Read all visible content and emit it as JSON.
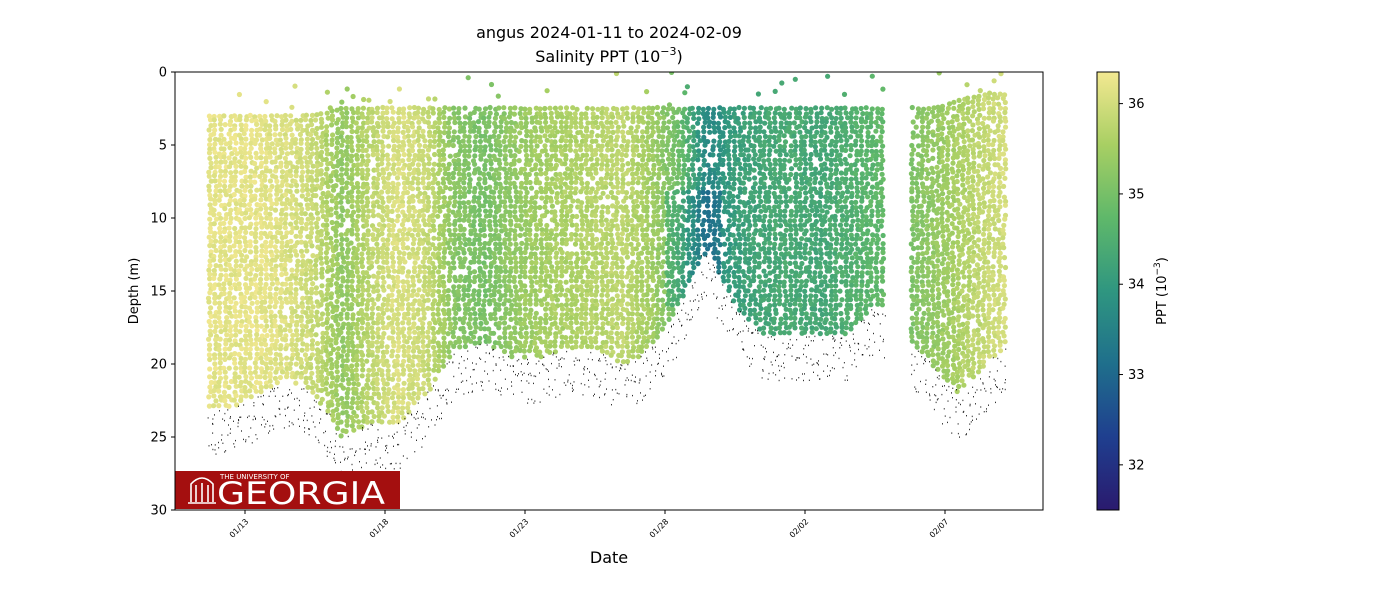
{
  "chart_data": {
    "type": "scatter",
    "title": "angus 2024-01-11 to 2024-02-09",
    "subtitle_prefix": "Salinity PPT (10",
    "subtitle_exp": "−3",
    "subtitle_suffix": ")",
    "xlabel": "Date",
    "ylabel": "Depth (m)",
    "y_inverted": true,
    "ylim": [
      0,
      30
    ],
    "yticks": [
      "0",
      "5",
      "10",
      "15",
      "20",
      "25",
      "30"
    ],
    "yticks_values": [
      0,
      5,
      10,
      15,
      20,
      25,
      30
    ],
    "xlim": [
      "2024-01-10T12:00",
      "2024-02-10T12:00"
    ],
    "xticks": [
      "01/13",
      "01/18",
      "01/23",
      "01/28",
      "02/02",
      "02/07"
    ],
    "xticks_dates": [
      "2024-01-13",
      "2024-01-18",
      "2024-01-23",
      "2024-01-28",
      "2024-02-02",
      "2024-02-07"
    ],
    "grid": false,
    "colorbar": {
      "label_prefix": "PPT (10",
      "label_exp": "−3",
      "label_suffix": ")",
      "range": [
        31.5,
        36.35
      ],
      "ticks": [
        "32",
        "33",
        "34",
        "35",
        "36"
      ],
      "tick_values": [
        32,
        33,
        34,
        35,
        36
      ],
      "colormap": "haline",
      "colors": [
        "#2a1a6e",
        "#1f3f8f",
        "#1f6f8c",
        "#2f9680",
        "#5fb86a",
        "#a8cf63",
        "#f3e891"
      ]
    },
    "series": [
      {
        "x": [
          "2024-01-12",
          "2024-01-13",
          "2024-01-14",
          "2024-01-15",
          "2024-01-16",
          "2024-01-17",
          "2024-01-18",
          "2024-01-19",
          "2024-01-20",
          "2024-01-21",
          "2024-01-22",
          "2024-01-23",
          "2024-01-24",
          "2024-01-25",
          "2024-01-26",
          "2024-01-27",
          "2024-01-28",
          "2024-01-29",
          "2024-01-30",
          "2024-01-31",
          "2024-02-01",
          "2024-02-02",
          "2024-02-03",
          "2024-02-04",
          "2024-02-05",
          "2024-02-06",
          "2024-02-07",
          "2024-02-08",
          "2024-02-09"
        ],
        "salinity_ppt": [
          36.2,
          36.2,
          36.1,
          35.9,
          35.3,
          35.8,
          36.1,
          35.9,
          35.2,
          35.0,
          35.3,
          35.5,
          35.6,
          35.7,
          35.8,
          35.5,
          34.9,
          33.6,
          34.1,
          34.3,
          34.4,
          34.3,
          34.5,
          34.7,
          null,
          35.3,
          35.6,
          35.9,
          36.1
        ],
        "surface_depth_m": [
          3.0,
          3.0,
          3.0,
          3.0,
          2.5,
          2.5,
          2.5,
          2.5,
          2.5,
          2.5,
          2.5,
          2.5,
          2.5,
          2.5,
          2.5,
          2.5,
          2.5,
          2.5,
          2.5,
          2.5,
          2.5,
          2.5,
          2.5,
          2.5,
          null,
          2.5,
          2.0,
          1.5,
          1.5
        ],
        "bottom_depth_m": [
          23.0,
          22.0,
          21.0,
          22.0,
          25.0,
          24.0,
          24.0,
          22.0,
          19.0,
          18.5,
          19.5,
          19.5,
          19.0,
          19.0,
          20.0,
          19.0,
          16.0,
          12.0,
          16.0,
          18.0,
          18.0,
          18.0,
          18.0,
          16.0,
          null,
          20.0,
          22.0,
          20.0,
          18.0
        ]
      }
    ],
    "logo": {
      "line1": "THE UNIVERSITY OF",
      "line2": "GEORGIA",
      "color": "#a40f0f"
    }
  }
}
